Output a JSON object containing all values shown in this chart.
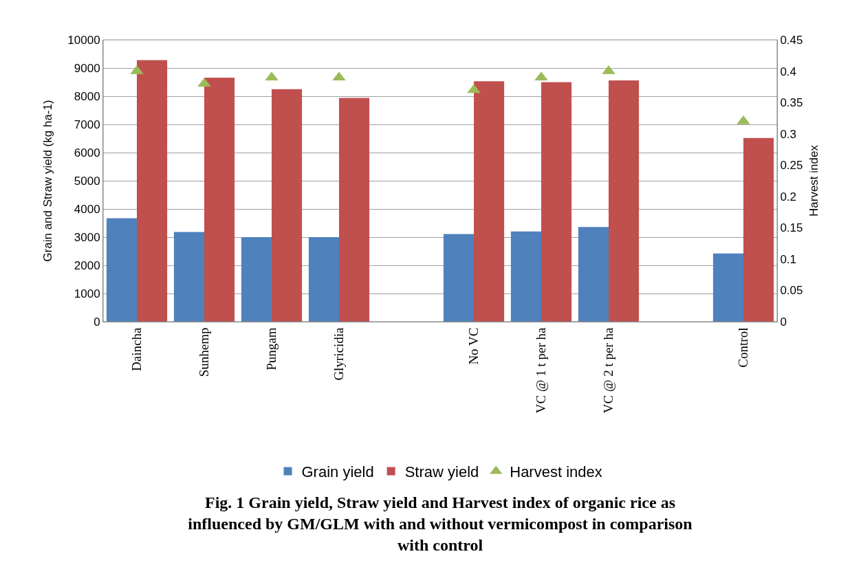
{
  "chart_data": {
    "type": "bar",
    "title": "Fig. 1 Grain yield, Straw yield and Harvest index of organic rice as influenced by GM/GLM with and without vermicompost in comparison with control",
    "categories": [
      "Daincha",
      "Sunhemp",
      "Pungam",
      "Glyricidia",
      null,
      "No VC",
      "VC @ 1 t per ha",
      "VC @ 2 t per ha",
      null,
      "Control"
    ],
    "series": [
      {
        "name": "Grain yield",
        "color": "#4f81bd",
        "values": [
          3670,
          3180,
          3000,
          3000,
          null,
          3110,
          3200,
          3360,
          null,
          2420
        ]
      },
      {
        "name": "Straw yield",
        "color": "#c0504d",
        "values": [
          9280,
          8660,
          8250,
          7940,
          null,
          8530,
          8500,
          8560,
          null,
          6520
        ]
      },
      {
        "name": "Harvest index",
        "color": "#9bbb59",
        "type": "scatter",
        "axis": "y2",
        "marker": "triangle",
        "values": [
          0.4,
          0.38,
          0.39,
          0.39,
          null,
          0.37,
          0.39,
          0.4,
          null,
          0.32
        ]
      }
    ],
    "ylabel": "Grain and Straw yield (kg ha-1)",
    "y2label": "Harvest index",
    "ylim": [
      0,
      10000
    ],
    "yticks": [
      0,
      1000,
      2000,
      3000,
      4000,
      5000,
      6000,
      7000,
      8000,
      9000,
      10000
    ],
    "y2lim": [
      0,
      0.45
    ],
    "y2ticks": [
      0,
      0.05,
      0.1,
      0.15,
      0.2,
      0.25,
      0.3,
      0.35,
      0.4,
      0.45
    ],
    "grid": "y",
    "legend": "bottom"
  }
}
